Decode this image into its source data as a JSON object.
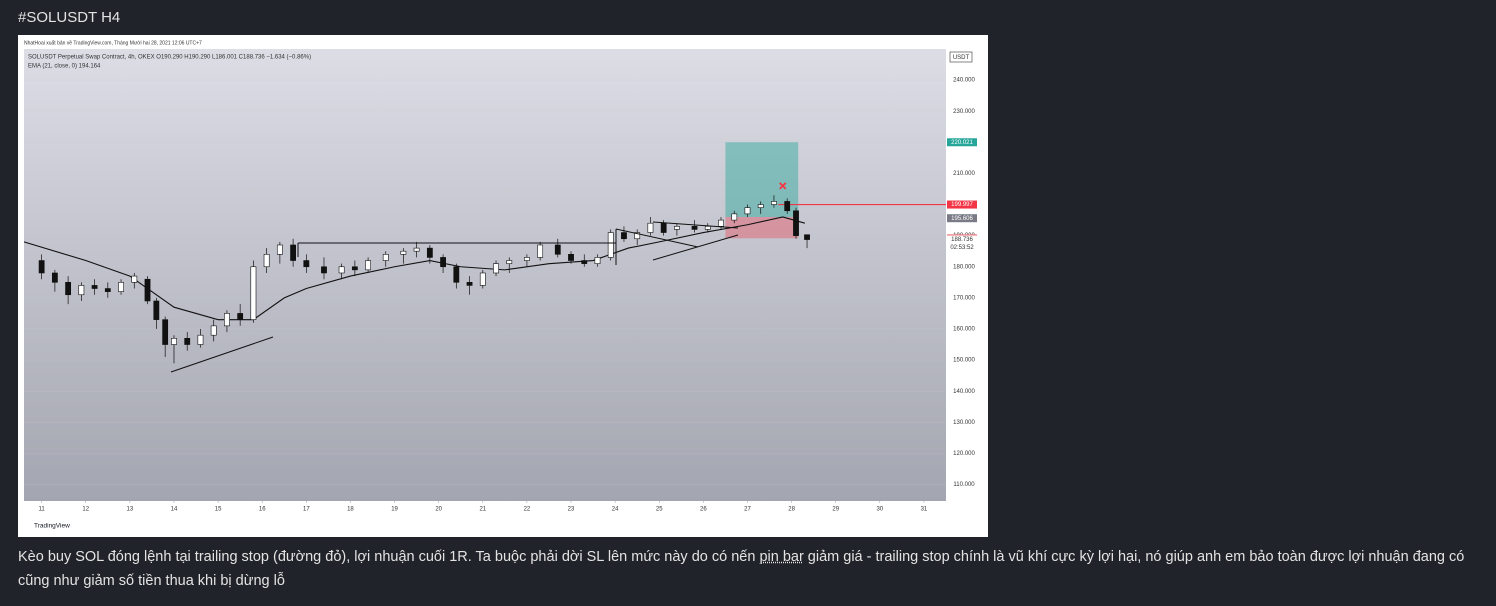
{
  "post": {
    "title": "#SOLUSDT H4",
    "body": [
      "Kèo buy SOL đóng lệnh tại trailing stop (đường đỏ), lợi nhuận cuối 1R. Ta buộc phải dời SL lên mức này do có nến ",
      "pin bar",
      " giảm giá - trailing stop chính là vũ khí cực kỳ lợi hại, nó giúp anh em bảo toàn được lợi nhuận đang có cũng như giảm số tiền thua khi bị dừng lỗ"
    ]
  },
  "chart_data": {
    "type": "candlestick",
    "publisher": "NhatHoai xuất bản về TradingView.com, Tháng Mười hai 28, 2021 12:06 UTC+7",
    "legend": [
      "SOLUSDT Perpetual Swap Contract, 4h, OKEX  O190.290 H190.290 L186.001 C188.736 −1.634 (−0.86%)",
      "EMA (21, close, 0)  194.164"
    ],
    "currency": "USDT",
    "brand": "TradingView",
    "countdown": "02:53:52",
    "xlim": [
      10.6,
      31.5
    ],
    "xticks": [
      11,
      12,
      13,
      14,
      15,
      16,
      17,
      18,
      19,
      20,
      21,
      22,
      23,
      24,
      25,
      26,
      27,
      28,
      29,
      30,
      31
    ],
    "ylim": [
      104.7,
      250
    ],
    "yticks": [
      {
        "value": 110,
        "label": "110.000"
      },
      {
        "value": 120,
        "label": "120.000"
      },
      {
        "value": 130,
        "label": "130.000"
      },
      {
        "value": 140,
        "label": "140.000"
      },
      {
        "value": 150,
        "label": "150.000"
      },
      {
        "value": 160,
        "label": "160.000"
      },
      {
        "value": 170,
        "label": "170.000"
      },
      {
        "value": 180,
        "label": "180.000"
      },
      {
        "value": 190,
        "label": "190.000"
      },
      {
        "value": 200,
        "label": "200.000"
      },
      {
        "value": 210,
        "label": "210.000"
      },
      {
        "value": 220,
        "label": "220.000"
      },
      {
        "value": 230,
        "label": "230.000"
      },
      {
        "value": 240,
        "label": "240.000"
      }
    ],
    "x": [
      11.0,
      11.3,
      11.6,
      11.9,
      12.2,
      12.5,
      12.8,
      13.1,
      13.4,
      13.6,
      13.8,
      14.0,
      14.3,
      14.6,
      14.9,
      15.2,
      15.5,
      15.8,
      16.1,
      16.4,
      16.7,
      17.0,
      17.4,
      17.8,
      18.1,
      18.4,
      18.8,
      19.2,
      19.5,
      19.8,
      20.1,
      20.4,
      20.7,
      21.0,
      21.3,
      21.6,
      22.0,
      22.3,
      22.7,
      23.0,
      23.3,
      23.6,
      23.9,
      24.2,
      24.5,
      24.8,
      25.1,
      25.4,
      25.8,
      26.1,
      26.4,
      26.7,
      27.0,
      27.3,
      27.6,
      27.9,
      28.1,
      28.35
    ],
    "open": [
      182,
      178,
      175,
      171,
      174,
      173,
      172,
      175,
      176,
      169,
      163,
      155,
      157,
      155,
      158,
      161,
      165,
      163,
      180,
      184,
      187,
      182,
      180,
      178,
      180,
      179,
      182,
      184,
      185,
      186,
      183,
      180,
      175,
      174,
      178,
      181,
      182,
      183,
      187,
      184,
      182,
      181,
      183,
      191,
      189,
      191,
      194,
      192,
      193,
      192,
      193,
      195,
      197,
      199,
      200,
      201,
      198,
      190.29
    ],
    "high": [
      184,
      179,
      177,
      175,
      176,
      175,
      176,
      178,
      177,
      170,
      164,
      158,
      159,
      160,
      163,
      166,
      168,
      182,
      186,
      188,
      189,
      184,
      183,
      181,
      182,
      183,
      185,
      186,
      188,
      187,
      184,
      181,
      177,
      179,
      182,
      183,
      184,
      188,
      189,
      185,
      184,
      184,
      192,
      193,
      192,
      196,
      195,
      194,
      195,
      194,
      196,
      198,
      200,
      201,
      203,
      202,
      199,
      190.29
    ],
    "low": [
      176,
      172,
      168,
      169,
      171,
      170,
      171,
      173,
      168,
      160,
      151,
      149,
      153,
      154,
      156,
      159,
      161,
      162,
      178,
      181,
      180,
      178,
      176,
      176,
      177,
      178,
      180,
      181,
      183,
      181,
      178,
      173,
      171,
      173,
      177,
      178,
      180,
      182,
      183,
      181,
      180,
      180,
      182,
      188,
      187,
      190,
      190,
      190,
      191,
      191,
      192,
      194,
      196,
      197,
      199,
      197,
      189,
      186.001
    ],
    "close": [
      178,
      175,
      171,
      174,
      173,
      172,
      175,
      177,
      169,
      163,
      155,
      157,
      155,
      158,
      161,
      165,
      163,
      180,
      184,
      187,
      182,
      180,
      178,
      180,
      179,
      182,
      184,
      185,
      186,
      183,
      180,
      175,
      174,
      178,
      181,
      182,
      183,
      187,
      184,
      182,
      181,
      183,
      191,
      189,
      191,
      194,
      191,
      193,
      192,
      193,
      195,
      197,
      199,
      200,
      201,
      198,
      190,
      188.736
    ],
    "ema": {
      "x": [
        10.6,
        12,
        13,
        14,
        15,
        15.8,
        16.5,
        17,
        18,
        19,
        19.8,
        20.5,
        21.5,
        22.5,
        23.5,
        24.3,
        25,
        26,
        27,
        27.8,
        28.3
      ],
      "values": [
        188,
        182,
        177,
        167,
        163,
        163,
        170,
        173,
        177,
        180,
        182,
        180,
        179,
        181,
        182,
        186,
        188,
        191,
        193.5,
        196,
        194
      ]
    },
    "position": {
      "x": [
        26.5,
        28.15
      ],
      "target": 220.021,
      "entry": 196,
      "stop": 189.153
    },
    "trailing_stop": {
      "value": 199.997,
      "x": 27.7
    },
    "exit_marker": {
      "x": 27.8,
      "value": 206
    },
    "price_labels": [
      {
        "value": 220.021,
        "color": "#26a69a"
      },
      {
        "value": 199.997,
        "color": "#f23645"
      },
      {
        "value": 195.606,
        "color": "#787b86"
      },
      {
        "value": 189.153,
        "color": "#ef7a80"
      },
      {
        "value": 188.736,
        "color": "#ffffff"
      }
    ]
  }
}
